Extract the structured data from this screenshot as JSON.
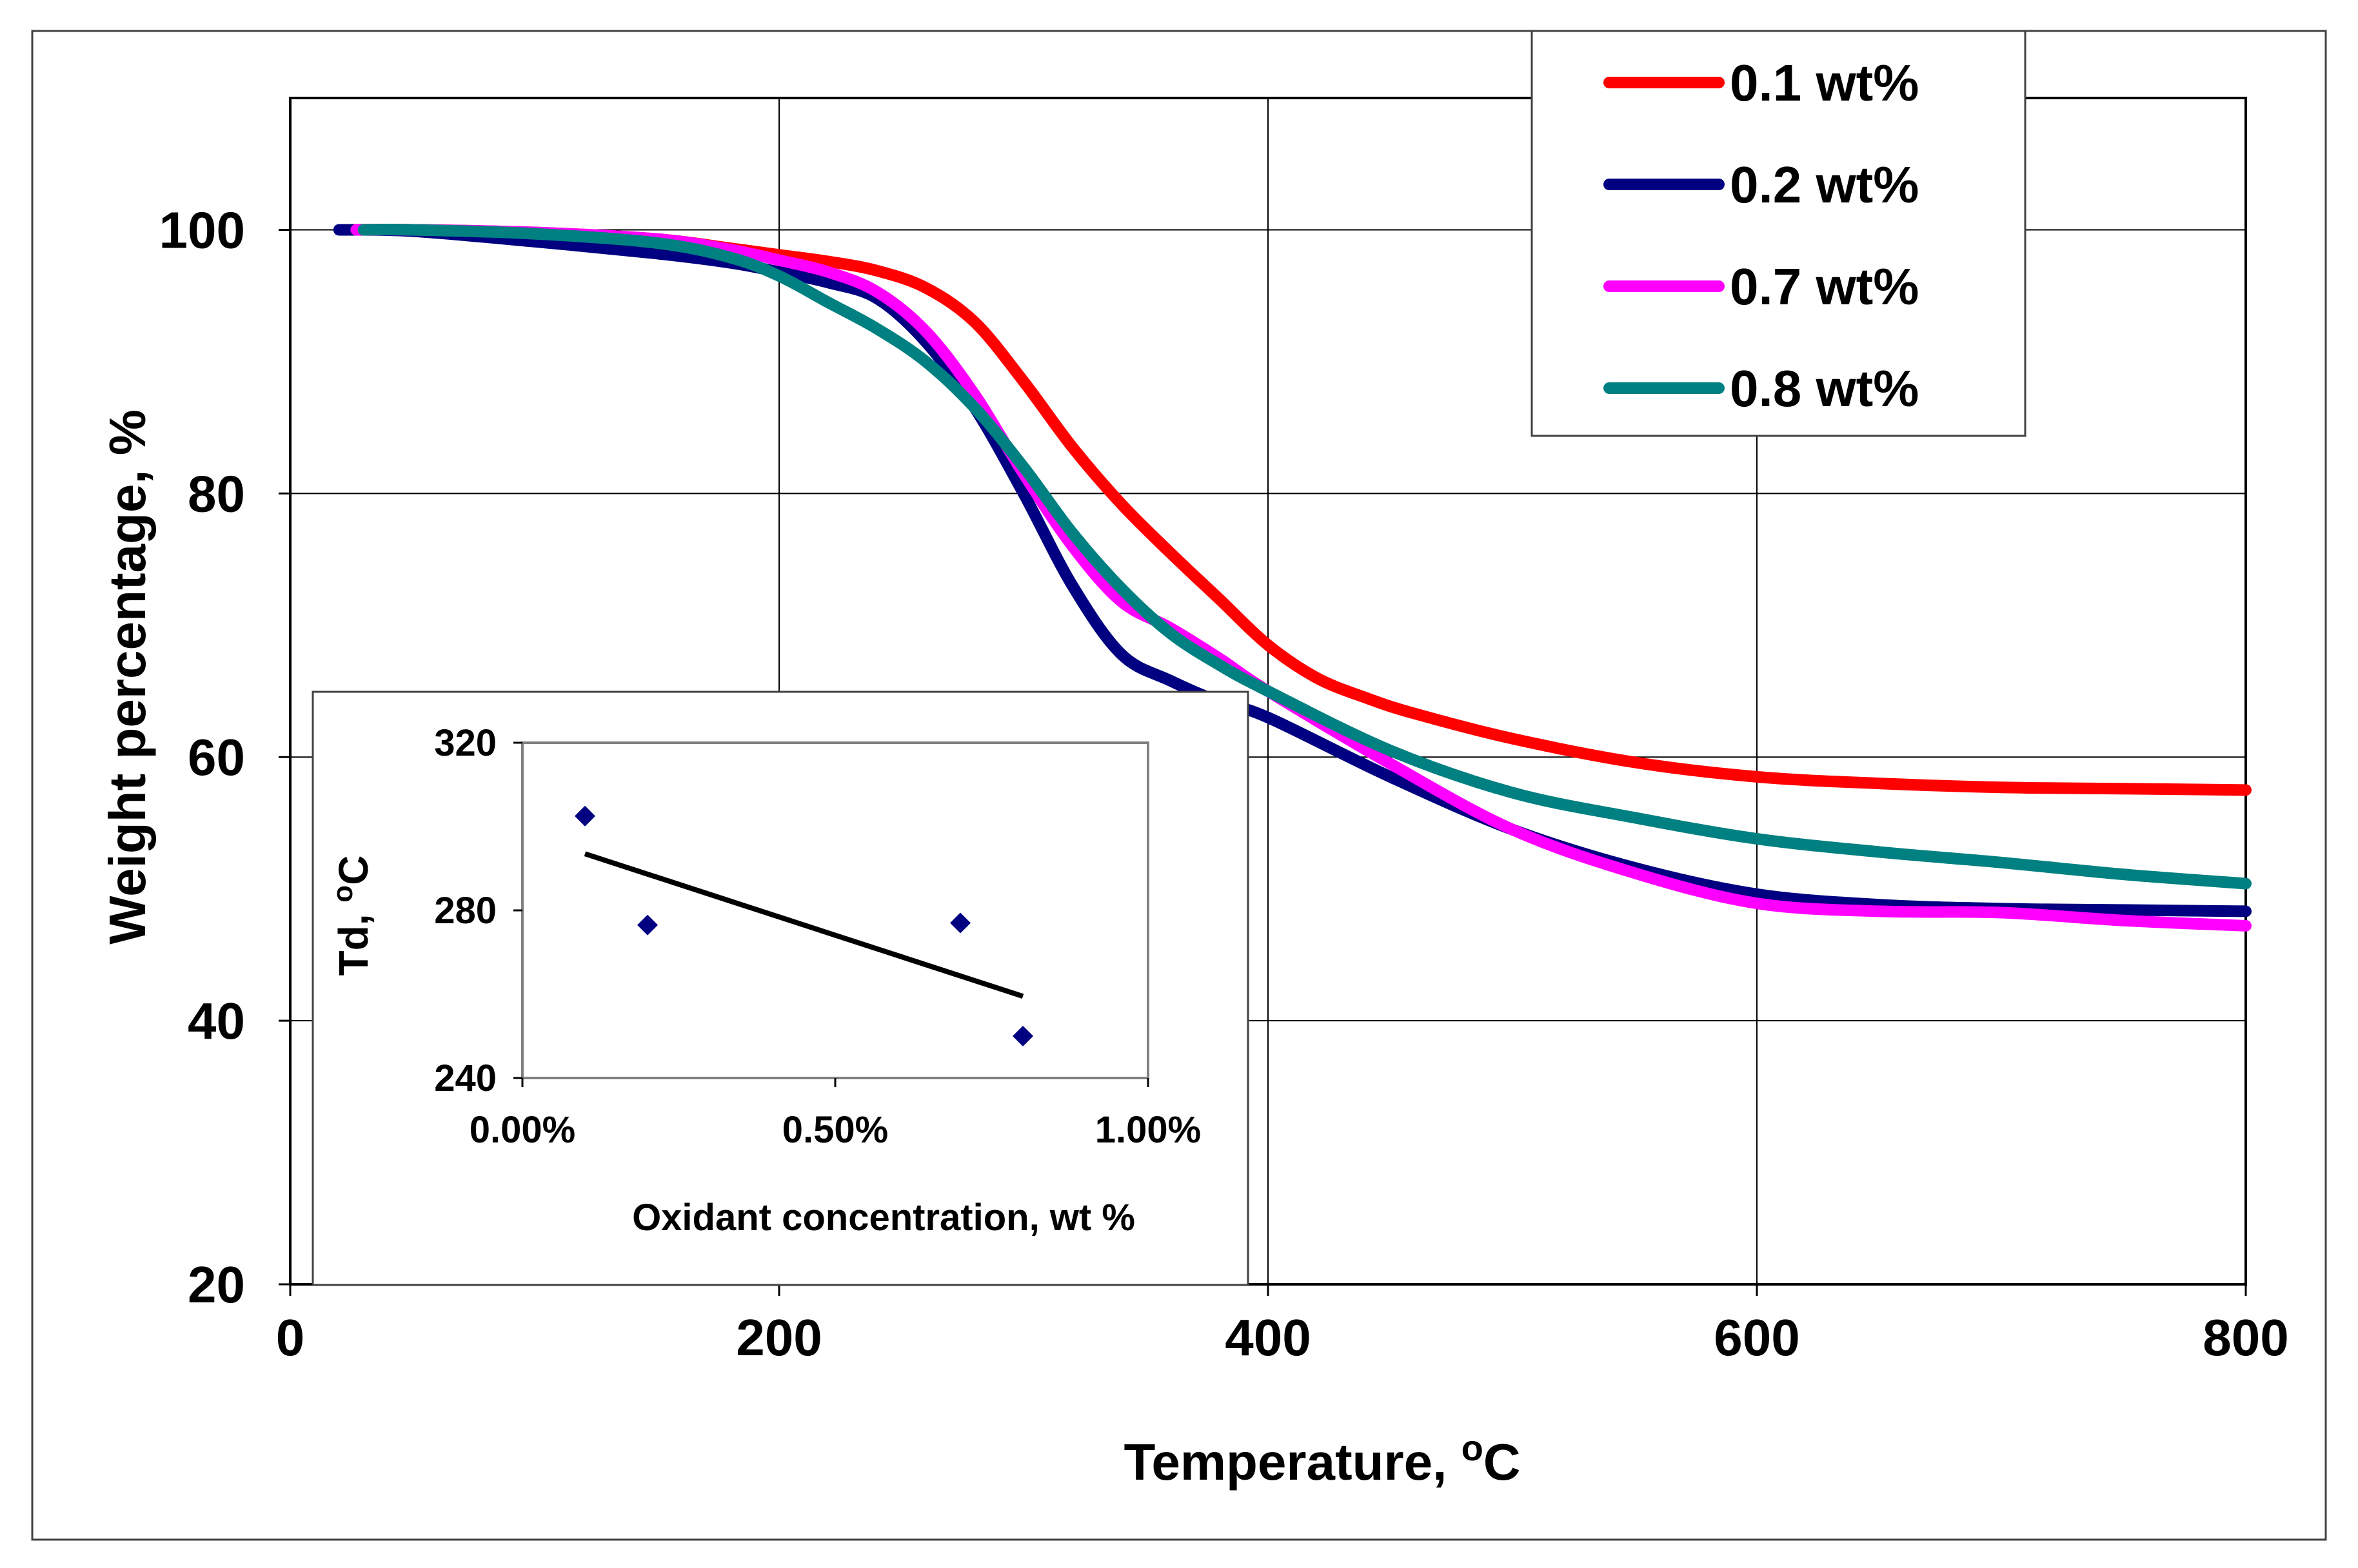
{
  "chart_data": [
    {
      "type": "line",
      "title": "",
      "xlabel": "Temperature, ",
      "xlabel_sup": "o",
      "xlabel_suffix": "C",
      "ylabel": "Weight percentage, %",
      "xlim": [
        0,
        800
      ],
      "ylim": [
        20,
        110
      ],
      "xticks": [
        0,
        200,
        400,
        600,
        800
      ],
      "yticks": [
        20,
        40,
        60,
        80,
        100
      ],
      "grid": true,
      "legend_position": "top-right",
      "series": [
        {
          "name": "0.1 wt%",
          "color": "#ff0000",
          "x": [
            22,
            50,
            100,
            150,
            180,
            200,
            220,
            240,
            260,
            280,
            300,
            320,
            340,
            360,
            380,
            400,
            420,
            440,
            460,
            500,
            550,
            600,
            650,
            700,
            750,
            800
          ],
          "y": [
            100,
            100,
            99.8,
            99.3,
            98.6,
            98.1,
            97.6,
            96.9,
            95.6,
            93,
            88.5,
            83.5,
            79.2,
            75.5,
            72,
            68.5,
            66,
            64.5,
            63.3,
            61.4,
            59.6,
            58.5,
            58,
            57.7,
            57.6,
            57.5
          ]
        },
        {
          "name": "0.2 wt%",
          "color": "#000080",
          "x": [
            20,
            50,
            100,
            150,
            180,
            200,
            220,
            240,
            260,
            280,
            300,
            320,
            340,
            360,
            380,
            400,
            450,
            500,
            550,
            600,
            650,
            700,
            750,
            800
          ],
          "y": [
            100,
            99.9,
            99.1,
            98.2,
            97.5,
            96.8,
            96,
            94.8,
            91.5,
            86.5,
            80,
            73,
            67.8,
            65.8,
            64.2,
            63,
            58.5,
            54.5,
            51.6,
            49.6,
            48.8,
            48.5,
            48.4,
            48.3
          ]
        },
        {
          "name": "0.7 wt%",
          "color": "#ff00ff",
          "x": [
            27,
            50,
            100,
            150,
            180,
            200,
            220,
            240,
            260,
            280,
            300,
            320,
            340,
            360,
            380,
            400,
            450,
            500,
            550,
            600,
            650,
            700,
            750,
            800
          ],
          "y": [
            100,
            100,
            99.8,
            99.3,
            98.5,
            97.7,
            96.8,
            95.3,
            92.3,
            87.5,
            81.5,
            76,
            71.8,
            69.8,
            67.5,
            65,
            59.5,
            54.5,
            51.2,
            48.9,
            48.3,
            48.2,
            47.6,
            47.2
          ]
        },
        {
          "name": "0.8 wt%",
          "color": "#008080",
          "x": [
            30,
            50,
            100,
            150,
            180,
            200,
            220,
            240,
            260,
            280,
            300,
            320,
            340,
            360,
            380,
            400,
            450,
            500,
            550,
            600,
            650,
            700,
            750,
            800
          ],
          "y": [
            100,
            100,
            99.7,
            99,
            97.9,
            96.5,
            94.5,
            92.5,
            90,
            86.5,
            82,
            77,
            72.8,
            69.4,
            67,
            65,
            60.5,
            57.3,
            55.4,
            53.8,
            52.8,
            52,
            51.1,
            50.4
          ]
        }
      ]
    },
    {
      "type": "scatter",
      "title": "",
      "xlabel": "Oxidant concentration, wt %",
      "ylabel": "Td, ",
      "ylabel_sup": "o",
      "ylabel_suffix": "C",
      "xlim": [
        0,
        1
      ],
      "ylim": [
        240,
        320
      ],
      "xticks": [
        0,
        0.5,
        1
      ],
      "xtick_labels": [
        "0.00%",
        "0.50%",
        "1.00%"
      ],
      "yticks": [
        240,
        280,
        320
      ],
      "grid": false,
      "marker_color": "#000080",
      "points": [
        {
          "x": 0.1,
          "y": 302.5
        },
        {
          "x": 0.2,
          "y": 276.5
        },
        {
          "x": 0.7,
          "y": 277.0
        },
        {
          "x": 0.8,
          "y": 250.0
        }
      ],
      "trendline": {
        "x": [
          0.1,
          0.8
        ],
        "y": [
          293.5,
          259.5
        ],
        "color": "#000000"
      }
    }
  ]
}
